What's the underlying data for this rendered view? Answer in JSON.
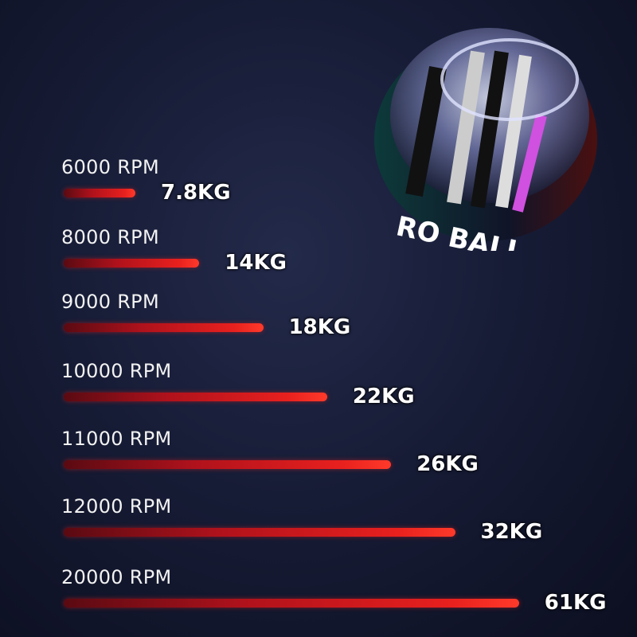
{
  "product_logo_text": "RO BALL",
  "chart_data": {
    "type": "bar",
    "orientation": "horizontal",
    "categories": [
      "6000 RPM",
      "8000 RPM",
      "9000 RPM",
      "10000 RPM",
      "11000 RPM",
      "12000 RPM",
      "20000 RPM"
    ],
    "values": [
      7.8,
      14,
      18,
      22,
      26,
      32,
      61
    ],
    "value_labels": [
      "7.8KG",
      "14KG",
      "18KG",
      "22KG",
      "26KG",
      "32KG",
      "61KG"
    ],
    "bar_color": "#e8201e",
    "grid": false
  }
}
